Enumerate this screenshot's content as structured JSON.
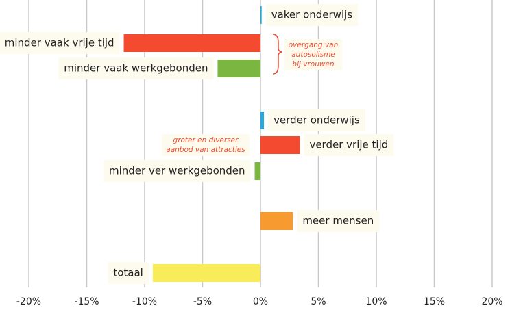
{
  "chart_data": {
    "type": "hbar",
    "categories": [
      "vaker onderwijs",
      "minder vaak vrije tijd",
      "minder vaak werkgebonden",
      "verder onderwijs",
      "verder vrije tijd",
      "minder ver werkgebonden",
      "meer mensen",
      "totaal"
    ],
    "values": [
      0.1,
      -11.8,
      -3.7,
      0.3,
      3.4,
      -0.5,
      2.8,
      -9.3
    ],
    "colors": [
      "#29a8d8",
      "#f44a30",
      "#7ab640",
      "#29a8d8",
      "#f44a30",
      "#7ab640",
      "#f79a30",
      "#f8ec5a"
    ],
    "xlim": [
      -20,
      20
    ],
    "xticks": [
      {
        "value": -20,
        "label": "-20%"
      },
      {
        "value": -15,
        "label": "-15%"
      },
      {
        "value": -10,
        "label": "-10%"
      },
      {
        "value": -5,
        "label": "-5%"
      },
      {
        "value": 0,
        "label": "0%"
      },
      {
        "value": 5,
        "label": "5%"
      },
      {
        "value": 10,
        "label": "10%"
      },
      {
        "value": 15,
        "label": "15%"
      },
      {
        "value": 20,
        "label": "20%"
      }
    ],
    "grid": true,
    "annotations": [
      {
        "lines": [
          "overgang van",
          "autosolisme",
          "bij vrouwen"
        ]
      },
      {
        "lines": [
          "groter en diverser",
          "aanbod van attracties"
        ]
      }
    ]
  }
}
